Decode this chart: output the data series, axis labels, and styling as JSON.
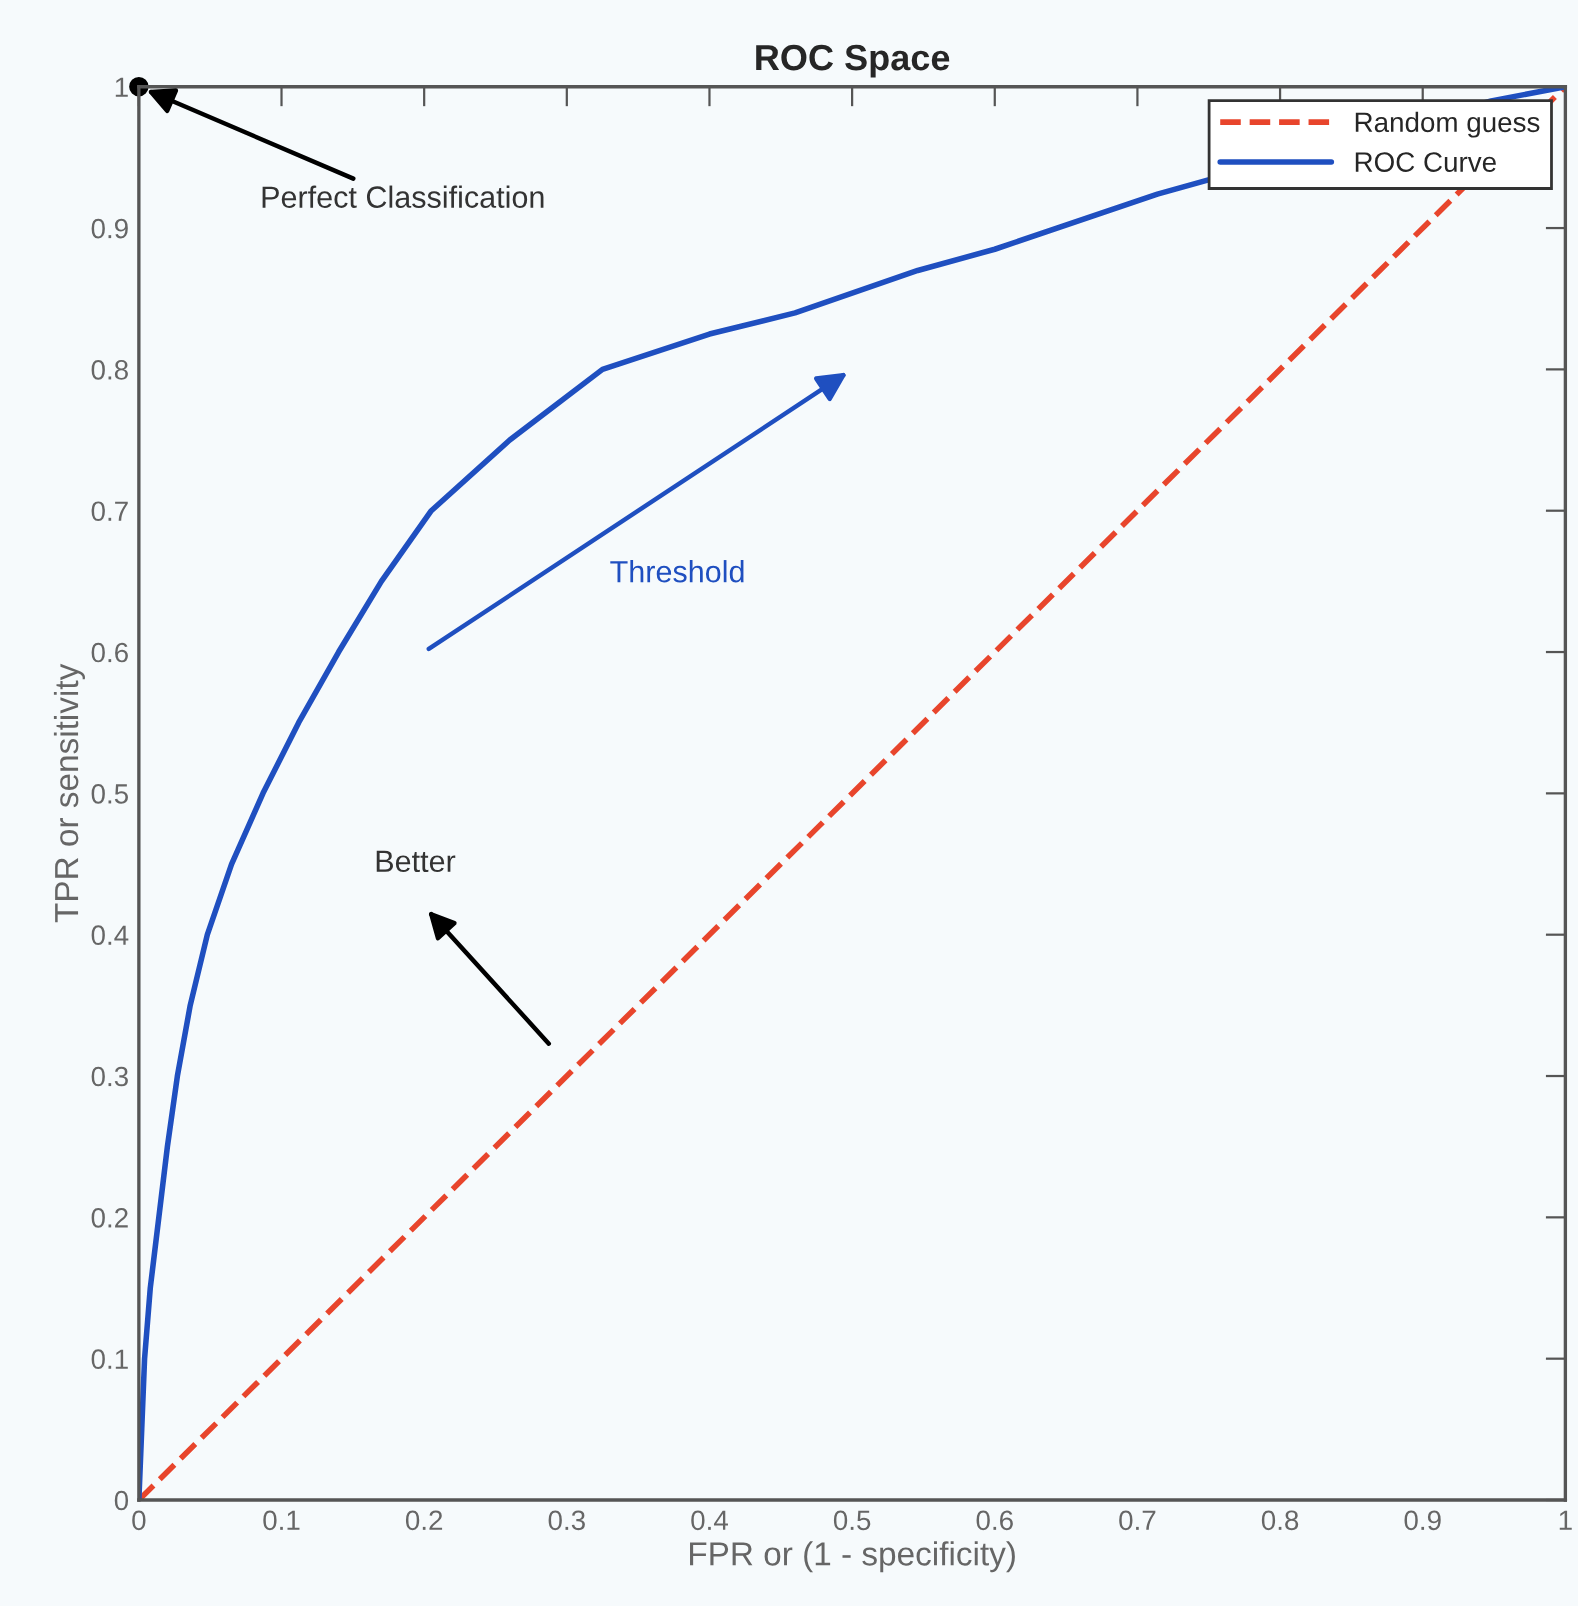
{
  "chart_data": {
    "type": "line",
    "title": "ROC Space",
    "xlabel": "FPR or (1 - specificity)",
    "ylabel": "TPR or sensitivity",
    "xlim": [
      0,
      1
    ],
    "ylim": [
      0,
      1
    ],
    "xticks": [
      {
        "value": 0,
        "label": "0"
      },
      0.1,
      0.2,
      0.3,
      0.4,
      0.5,
      0.6,
      0.7,
      0.8,
      0.9,
      {
        "value": 1,
        "label": "1"
      }
    ],
    "yticks": [
      {
        "value": 0,
        "label": "0"
      },
      0.1,
      0.2,
      0.3,
      0.4,
      0.5,
      0.6,
      0.7,
      0.8,
      0.9,
      {
        "value": 1,
        "label": "1"
      }
    ],
    "grid": false,
    "legend": "top right",
    "marker": "none",
    "series": [
      {
        "name": "Random guess",
        "color": "#e8452c",
        "line_style": "dashed",
        "x": [
          0,
          1
        ],
        "values": [
          0,
          1
        ]
      },
      {
        "name": "ROC Curve",
        "color": "#1f4fc0",
        "line_style": "solid",
        "x": [
          0,
          0.002,
          0.004,
          0.008,
          0.014,
          0.02,
          0.027,
          0.036,
          0.048,
          0.065,
          0.087,
          0.112,
          0.14,
          0.17,
          0.205,
          0.26,
          0.325,
          0.4,
          0.46,
          0.546,
          0.6,
          0.714,
          0.948,
          1
        ],
        "values": [
          0,
          0.05,
          0.1,
          0.15,
          0.2,
          0.25,
          0.3,
          0.35,
          0.4,
          0.45,
          0.5,
          0.55,
          0.6,
          0.65,
          0.7,
          0.75,
          0.8,
          0.825,
          0.84,
          0.87,
          0.885,
          0.924,
          0.99,
          1
        ]
      }
    ],
    "annotations": [
      {
        "text": "Perfect Classification",
        "x": 0,
        "y": 1
      },
      "Threshold",
      "Better"
    ]
  }
}
